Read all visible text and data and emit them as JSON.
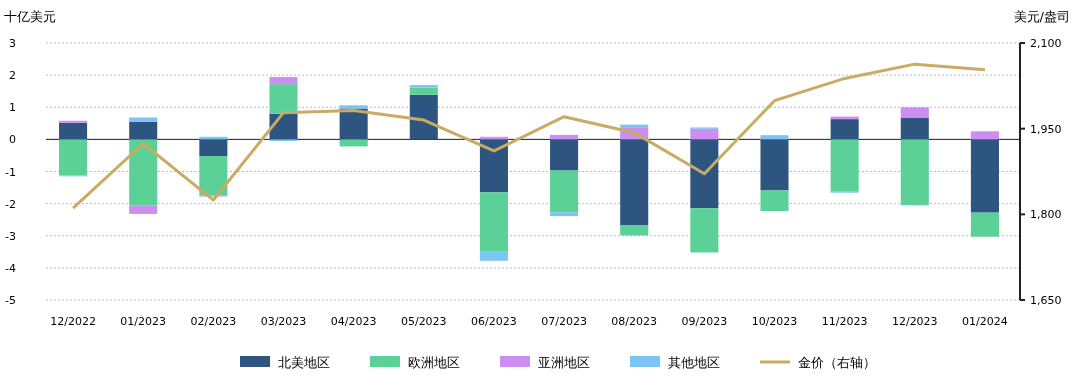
{
  "chart_data": {
    "type": "bar",
    "stacked": true,
    "ylabel": "十亿美元",
    "y2label": "美元/盎司",
    "categories": [
      "12/2022",
      "01/2023",
      "02/2023",
      "03/2023",
      "04/2023",
      "05/2023",
      "06/2023",
      "07/2023",
      "08/2023",
      "09/2023",
      "10/2023",
      "11/2023",
      "12/2023",
      "01/2024"
    ],
    "series": [
      {
        "name": "北美地区",
        "color": "#2e5480",
        "values": [
          0.52,
          0.55,
          -0.52,
          0.8,
          0.96,
          1.39,
          -1.65,
          -0.97,
          -2.68,
          -2.14,
          -1.59,
          0.63,
          0.68,
          -2.28
        ]
      },
      {
        "name": "欧洲地区",
        "color": "#5bd197",
        "values": [
          -1.12,
          -2.06,
          -1.22,
          0.92,
          -0.22,
          0.22,
          -1.83,
          -1.3,
          -0.31,
          -1.38,
          -0.64,
          -1.63,
          -2.05,
          -0.75
        ]
      },
      {
        "name": "亚洲地区",
        "color": "#cc8ef0",
        "values": [
          0.06,
          -0.26,
          -0.04,
          0.22,
          null,
          null,
          0.08,
          0.14,
          0.38,
          0.33,
          null,
          0.08,
          0.31,
          0.24
        ]
      },
      {
        "name": "其他地区",
        "color": "#7cc4f4",
        "values": [
          -0.03,
          0.13,
          0.08,
          -0.05,
          0.1,
          0.08,
          -0.3,
          -0.12,
          0.08,
          0.04,
          0.13,
          -0.03,
          0.02,
          0.02
        ]
      },
      {
        "name": "金价（右轴）",
        "type": "line",
        "axis": "y2",
        "color": "#c9ac62",
        "values": [
          1811,
          1924,
          1825,
          1978,
          1982,
          1965,
          1911,
          1971,
          1943,
          1871,
          1999,
          2038,
          2063,
          2053
        ]
      }
    ],
    "ylim": [
      -5,
      3
    ],
    "yticks": [
      -5,
      -4,
      -3,
      -2,
      -1,
      0,
      1,
      2,
      3
    ],
    "y2lim": [
      1650,
      2100
    ],
    "y2ticks": [
      {
        "value": 1650,
        "label": "1,650"
      },
      {
        "value": 1800,
        "label": "1,800"
      },
      {
        "value": 1950,
        "label": "1,950"
      },
      {
        "value": 2100,
        "label": "2,100"
      }
    ],
    "grid": "y",
    "legend": "bottom",
    "marker": "none",
    "line_style": "solid"
  }
}
